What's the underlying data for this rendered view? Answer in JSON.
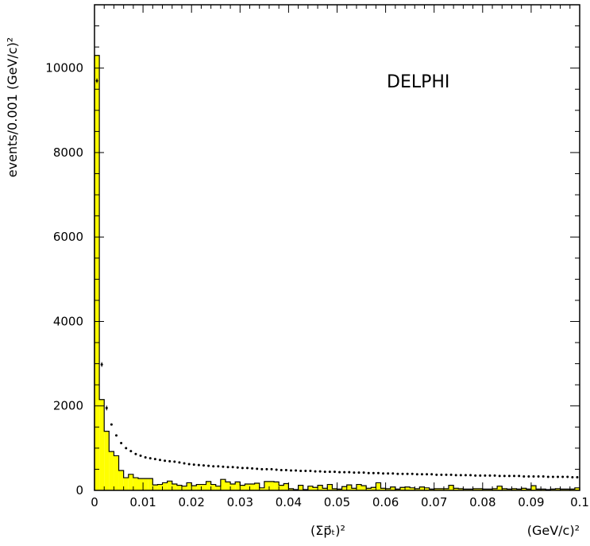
{
  "chart_data": {
    "type": "bar",
    "ylabel": "events/0.001 (GeV/c)²",
    "xlabel": "(Σp⃗ₜ)²",
    "xunit": "(GeV/c)²",
    "annotation": "DELPHI",
    "xlim": [
      0,
      0.1
    ],
    "ylim": [
      0,
      11500
    ],
    "x_ticks": [
      0,
      0.01,
      0.02,
      0.03,
      0.04,
      0.05,
      0.06,
      0.07,
      0.08,
      0.09,
      0.1
    ],
    "x_tick_labels": [
      "0",
      "0.01",
      "0.02",
      "0.03",
      "0.04",
      "0.05",
      "0.06",
      "0.07",
      "0.08",
      "0.09",
      "0.1"
    ],
    "y_ticks": [
      0,
      2000,
      4000,
      6000,
      8000,
      10000
    ],
    "y_tick_labels": [
      "0",
      "2000",
      "4000",
      "6000",
      "8000",
      "10000"
    ],
    "bin_width": 0.001,
    "series": [
      {
        "kind": "histogram",
        "fill_color": "#ffff00",
        "values": [
          10300,
          2150,
          1400,
          920,
          820,
          470,
          300,
          380,
          300,
          280,
          280,
          280,
          130,
          140,
          180,
          220,
          150,
          120,
          100,
          180,
          110,
          140,
          140,
          210,
          140,
          100,
          260,
          200,
          150,
          200,
          120,
          150,
          150,
          170,
          60,
          210,
          210,
          200,
          120,
          160,
          40,
          20,
          120,
          20,
          100,
          70,
          120,
          50,
          140,
          40,
          30,
          90,
          130,
          50,
          140,
          110,
          50,
          70,
          180,
          50,
          40,
          80,
          30,
          70,
          80,
          60,
          40,
          80,
          60,
          30,
          40,
          40,
          40,
          120,
          50,
          40,
          30,
          30,
          40,
          40,
          30,
          30,
          40,
          100,
          40,
          30,
          40,
          30,
          50,
          30,
          110,
          30,
          30,
          20,
          30,
          40,
          30,
          30,
          30,
          60
        ]
      },
      {
        "kind": "points",
        "marker_color": "#000000",
        "values": [
          9700,
          2980,
          1950,
          1560,
          1300,
          1120,
          1000,
          930,
          860,
          820,
          780,
          760,
          740,
          720,
          700,
          690,
          680,
          660,
          640,
          620,
          610,
          600,
          590,
          580,
          570,
          570,
          560,
          550,
          550,
          540,
          530,
          530,
          520,
          510,
          500,
          500,
          500,
          490,
          480,
          480,
          470,
          470,
          460,
          460,
          460,
          450,
          450,
          440,
          440,
          440,
          430,
          430,
          430,
          420,
          420,
          420,
          410,
          410,
          410,
          400,
          400,
          400,
          390,
          390,
          390,
          390,
          380,
          380,
          380,
          380,
          370,
          370,
          370,
          370,
          360,
          360,
          360,
          360,
          350,
          350,
          350,
          350,
          350,
          340,
          340,
          340,
          340,
          340,
          330,
          330,
          330,
          330,
          330,
          320,
          320,
          320,
          320,
          320,
          310,
          310
        ]
      }
    ]
  }
}
